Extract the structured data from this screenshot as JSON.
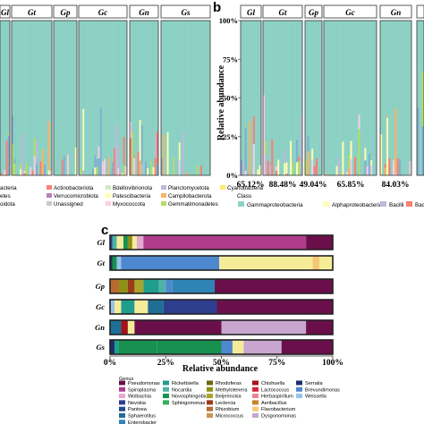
{
  "panels": {
    "b_label": "b",
    "c_label": "c"
  },
  "colors": {
    "aqua": "#8fd3c7",
    "yellow": "#ffffb3",
    "lavender": "#bebada",
    "salmon": "#fb8072",
    "blue": "#80b1d3",
    "orange": "#fdb462",
    "green": "#b3de69",
    "pink": "#fccde5",
    "gray": "#d9d9d9",
    "violet": "#bc80bd",
    "mint": "#ccebc5",
    "gold": "#ffed6f",
    "phylum_pink": "#fbb4c9",
    "phylum_gray": "#c9c9c9",
    "genus_pseudomonas": "#6b0f4a",
    "genus_spiroplasma": "#b03c8c",
    "genus_wolbachia": "#e3a9cf",
    "genus_nevskia": "#2e3e8f",
    "genus_pantoea": "#1f4e8a",
    "genus_sphaerotilus": "#1e6e96",
    "genus_enterobacter": "#2f84b6",
    "genus_rickettsiella": "#1f9e8e",
    "genus_nocardia": "#4fb2a8",
    "genus_novosphingobium": "#18904f",
    "genus_sphingomonas": "#36ac5e",
    "genus_rhodoferax": "#6b6a10",
    "genus_methylotenera": "#8f8f18",
    "genus_beijerinckia": "#a8a52a",
    "genus_leclercia": "#9a3c1c",
    "genus_rhizobium": "#b86a30",
    "genus_micrococcus": "#c99458",
    "genus_chishuella": "#a4121a",
    "genus_lactococcus": "#d1283a",
    "genus_herbaspirillum": "#e58694",
    "genus_aeribacillus": "#c8852a",
    "genus_flavobacterium": "#f7c873",
    "genus_serratia": "#1c2f6b",
    "genus_brevundimonas": "#4e88cf",
    "genus_weissella": "#95c2ea",
    "genus_other": "#f5ec9a",
    "genus_dysgonomonas": "#c8a6cf"
  },
  "phylum_chart": {
    "group_labels": [
      "Gl",
      "Gt",
      "Gp",
      "Gc",
      "Gn",
      "Gs"
    ],
    "legend_items": [
      "acteria",
      "Actinobacteriota",
      "Bdellovibrionota",
      "Planctomycetota",
      "Cyanobacteria",
      "etes",
      "Verrucomicrobiota",
      "Patescibacteria",
      "Campilobacterota",
      "oidota",
      "Unassigned",
      "Myxococcota",
      "Gemmatimonadetes"
    ]
  },
  "chart_data": [
    {
      "type": "bar",
      "stacked": true,
      "title": "",
      "ylabel": "Relative abundance",
      "y_ticks": [
        "100%",
        "75%",
        "50%",
        "25%",
        "0%"
      ],
      "ylim": [
        0,
        100
      ],
      "groups": [
        "Gl",
        "Gt",
        "Gp",
        "Gc",
        "Gn"
      ],
      "group_annotations": [
        "65.12%",
        "88.48%",
        "49.04%",
        "65.85%",
        "84.03%"
      ],
      "legend_title": "Class",
      "legend": [
        "Gammaproteobacteria",
        "Alphaproteobacteria",
        "Bacilli",
        "Bacteroidia"
      ],
      "dominant_series": "Gammaproteobacteria"
    },
    {
      "type": "bar",
      "orientation": "horizontal",
      "stacked": true,
      "xlabel": "Relative abundance",
      "x_ticks": [
        "0%",
        "25%",
        "50%",
        "75%",
        "100%"
      ],
      "xlim": [
        0,
        100
      ],
      "categories": [
        "Gl",
        "Gt",
        "Gp",
        "Gc",
        "Gn",
        "Gs"
      ],
      "legend_title": "Genus",
      "legend": [
        "Pseudomonas",
        "Spiroplasma",
        "Wolbachia",
        "Nevskia",
        "Pantoea",
        "Sphaerotilus",
        "Enterobacter",
        "Rickettsiella",
        "Nocardia",
        "Novosphingobium",
        "Sphingomonas",
        "Rhodoferax",
        "Methylotenera",
        "Beijerinckia",
        "Leclercia",
        "Rhizobium",
        "Micrococcus",
        "Chishuella",
        "Lactococcus",
        "Herbaspirillum",
        "Aeribacillus",
        "Flavobacterium",
        "Serratia",
        "Brevundimonas",
        "Weissella",
        "Dysgonomonas"
      ],
      "rows": [
        {
          "name": "Gl",
          "segments": [
            {
              "genus": "Nevskia",
              "value": 1
            },
            {
              "genus": "Nocardia",
              "value": 2
            },
            {
              "genus": "Other",
              "value": 3
            },
            {
              "genus": "Novosphingobium",
              "value": 2
            },
            {
              "genus": "Methylotenera",
              "value": 2
            },
            {
              "genus": "Other",
              "value": 2
            },
            {
              "genus": "Wolbachia",
              "value": 3
            },
            {
              "genus": "Spiroplasma",
              "value": 73
            },
            {
              "genus": "Pseudomonas",
              "value": 12
            }
          ]
        },
        {
          "name": "Gt",
          "segments": [
            {
              "genus": "Serratia",
              "value": 1
            },
            {
              "genus": "Novosphingobium",
              "value": 2
            },
            {
              "genus": "Weissella",
              "value": 2
            },
            {
              "genus": "Brevundimonas",
              "value": 44
            },
            {
              "genus": "Other",
              "value": 42
            },
            {
              "genus": "Flavobacterium",
              "value": 3
            },
            {
              "genus": "Other",
              "value": 6
            }
          ]
        },
        {
          "name": "Gp",
          "segments": [
            {
              "genus": "Rhizobium",
              "value": 4
            },
            {
              "genus": "Methylotenera",
              "value": 4
            },
            {
              "genus": "Leclercia",
              "value": 3
            },
            {
              "genus": "Beijerinckia",
              "value": 4
            },
            {
              "genus": "Rickettsiella",
              "value": 7
            },
            {
              "genus": "Nocardia",
              "value": 3
            },
            {
              "genus": "Brevundimonas",
              "value": 3
            },
            {
              "genus": "Enterobacter",
              "value": 19
            },
            {
              "genus": "Pseudomonas",
              "value": 53
            }
          ]
        },
        {
          "name": "Gc",
          "segments": [
            {
              "genus": "Weissella",
              "value": 2
            },
            {
              "genus": "Other",
              "value": 3
            },
            {
              "genus": "Rickettsiella",
              "value": 6
            },
            {
              "genus": "Other",
              "value": 6
            },
            {
              "genus": "Sphaerotilus",
              "value": 7
            },
            {
              "genus": "Nevskia",
              "value": 24
            },
            {
              "genus": "Pseudomonas",
              "value": 52
            }
          ]
        },
        {
          "name": "Gn",
          "segments": [
            {
              "genus": "Sphaerotilus",
              "value": 5
            },
            {
              "genus": "Chishuella",
              "value": 3
            },
            {
              "genus": "Other",
              "value": 3
            },
            {
              "genus": "Pseudomonas",
              "value": 39
            },
            {
              "genus": "Dysgonomonas",
              "value": 38
            },
            {
              "genus": "Pseudomonas",
              "value": 12
            }
          ]
        },
        {
          "name": "Gs",
          "segments": [
            {
              "genus": "Serratia",
              "value": 2
            },
            {
              "genus": "Rickettsiella",
              "value": 2
            },
            {
              "genus": "Novosphingobium",
              "value": 17
            },
            {
              "genus": "Novosphingobium",
              "value": 29
            },
            {
              "genus": "Brevundimonas",
              "value": 5
            },
            {
              "genus": "Other",
              "value": 5
            },
            {
              "genus": "Dysgonomonas",
              "value": 17
            },
            {
              "genus": "Pseudomonas",
              "value": 23
            }
          ]
        }
      ]
    }
  ]
}
